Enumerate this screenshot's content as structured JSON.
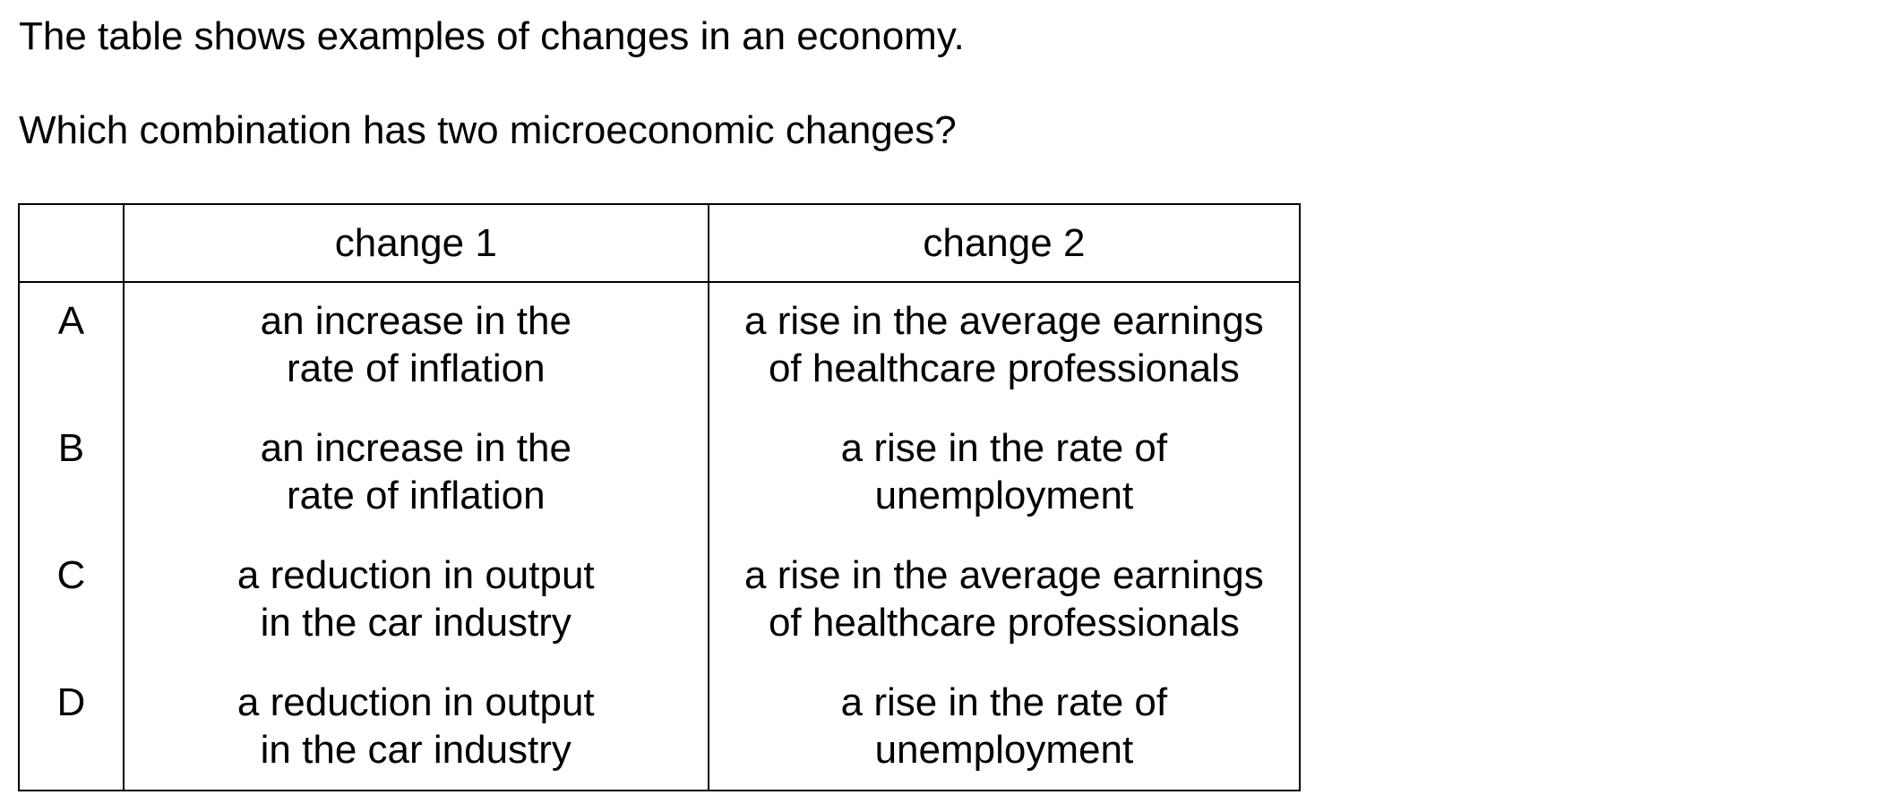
{
  "intro": "The table shows examples of changes in an economy.",
  "question": "Which combination has two microeconomic changes?",
  "table": {
    "headers": [
      "",
      "change 1",
      "change 2"
    ],
    "rows": [
      {
        "key": "A",
        "change1": [
          "an increase in the",
          "rate of inflation"
        ],
        "change2": [
          "a rise in the average earnings",
          "of healthcare professionals"
        ]
      },
      {
        "key": "B",
        "change1": [
          "an increase in the",
          "rate of inflation"
        ],
        "change2": [
          "a rise in the rate of",
          "unemployment"
        ]
      },
      {
        "key": "C",
        "change1": [
          "a reduction in output",
          "in the car industry"
        ],
        "change2": [
          "a rise in the average earnings",
          "of healthcare professionals"
        ]
      },
      {
        "key": "D",
        "change1": [
          "a reduction in output",
          "in the car industry"
        ],
        "change2": [
          "a rise in the rate of",
          "unemployment"
        ]
      }
    ]
  }
}
